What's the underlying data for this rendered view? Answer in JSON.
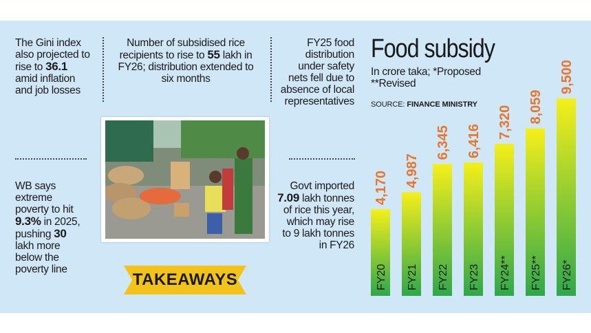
{
  "left_notes": {
    "gini": {
      "pre": "The Gini index also projected to rise to",
      "value": "36.1",
      "post": "amid inflation and job losses"
    },
    "wb": {
      "pre": "WB says extreme poverty to hit",
      "value1": "9.3%",
      "mid": "in 2025, pushing",
      "value2": "30",
      "post": "lakh more below the poverty line"
    }
  },
  "center_note": {
    "pre": "Number of subsidised rice recipients to rise to",
    "value": "55",
    "post": "lakh in FY26; distribution extended to six months"
  },
  "right_notes": {
    "fy25": "FY25 food distribution under safety nets fell due to absence of local representatives",
    "import": {
      "pre": "Govt imported",
      "value": "7.09",
      "post": "lakh tonnes of rice this year, which may rise to 9 lakh tonnes in FY26"
    }
  },
  "banner": {
    "label": "TAKEAWAYS",
    "color": "#f4c31a"
  },
  "photo": {
    "icon": "photo-image"
  },
  "colors": {
    "panel": "#cfe7f6",
    "value_label": "#e8762d",
    "bar_top": "#f5ef1a",
    "bar_bottom": "#2ea84a"
  },
  "chart_data": {
    "type": "bar",
    "title": "Food subsidy",
    "subtitle": "In crore taka; *Proposed **Revised",
    "source_prefix": "SOURCE:",
    "source": "FINANCE MINISTRY",
    "categories": [
      "FY20",
      "FY21",
      "FY22",
      "FY23",
      "FY24**",
      "FY25**",
      "FY26*"
    ],
    "values": [
      4170,
      4987,
      6345,
      6416,
      7320,
      8059,
      9500
    ],
    "value_labels": [
      "4,170",
      "4,987",
      "6,345",
      "6,416",
      "7,320",
      "8,059",
      "9,500"
    ],
    "ylim": [
      0,
      9500
    ],
    "grid": false
  }
}
